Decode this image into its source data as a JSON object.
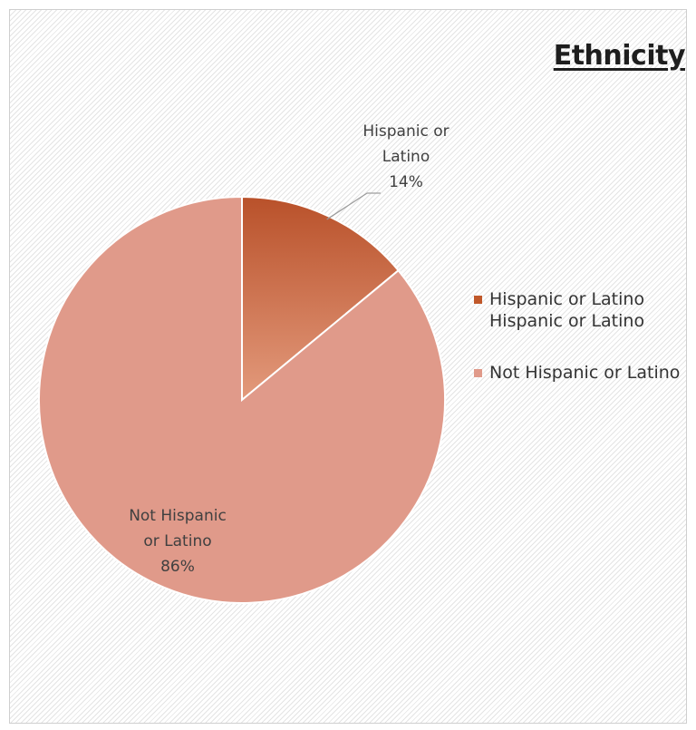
{
  "chart_data": {
    "type": "pie",
    "title": "Ethnicity",
    "slices": [
      {
        "label": "Hispanic or Latino",
        "value": 14,
        "data_label": "Hispanic or\nLatino\n14%",
        "color": "#c0582a"
      },
      {
        "label": "Not Hispanic or Latino",
        "value": 86,
        "data_label": "Not Hispanic\nor Latino\n86%",
        "color": "#e09a8a"
      }
    ],
    "legend": {
      "position": "right",
      "entries": [
        {
          "text": "Hispanic or Latino Hispanic or Latino",
          "color": "#c0582a"
        },
        {
          "text": "Not Hispanic or Latino",
          "color": "#e09a8a"
        }
      ]
    }
  }
}
